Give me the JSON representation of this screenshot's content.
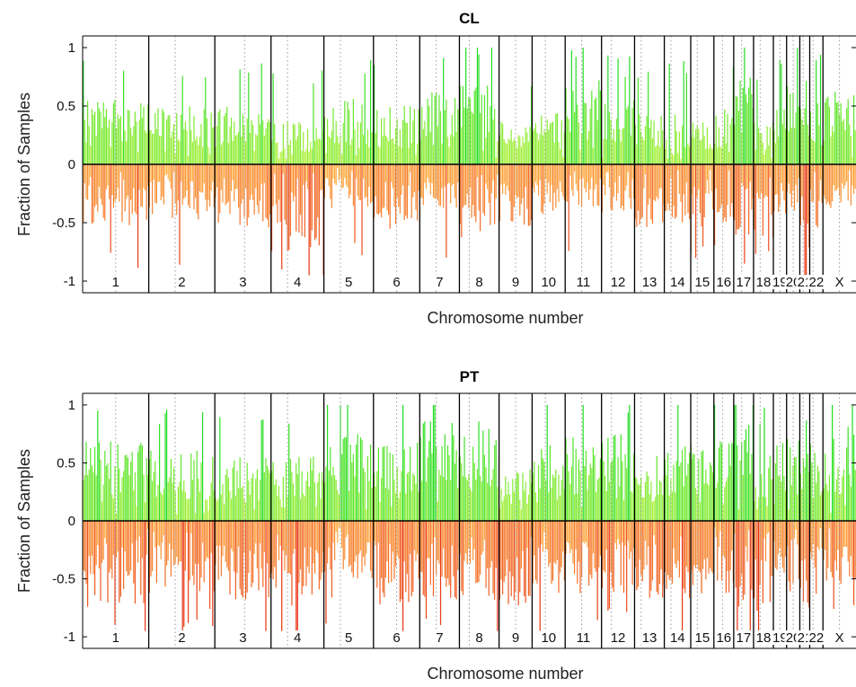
{
  "chart_data": [
    {
      "type": "bar",
      "title": "CL",
      "xlabel": "Chromosome number",
      "ylabel": "Fraction of Samples",
      "ylim": [
        -1.1,
        1.1
      ],
      "yticks": [
        "1",
        "0.5",
        "0",
        "-0.5",
        "-1"
      ],
      "zero_line": true,
      "chromosomes": [
        {
          "label": "1",
          "start": 0.0,
          "centromere": 0.5,
          "end": 1.0,
          "gain_level": 0.45,
          "loss_level": 0.42
        },
        {
          "label": "2",
          "start": 1.0,
          "centromere": 1.4,
          "end": 2.0,
          "gain_level": 0.4,
          "loss_level": 0.38
        },
        {
          "label": "3",
          "start": 2.0,
          "centromere": 2.45,
          "end": 2.85,
          "gain_level": 0.42,
          "loss_level": 0.45
        },
        {
          "label": "4",
          "start": 2.85,
          "centromere": 3.1,
          "end": 3.65,
          "gain_level": 0.3,
          "loss_level": 0.6
        },
        {
          "label": "5",
          "start": 3.65,
          "centromere": 3.9,
          "end": 4.4,
          "gain_level": 0.45,
          "loss_level": 0.3
        },
        {
          "label": "6",
          "start": 4.4,
          "centromere": 4.75,
          "end": 5.1,
          "gain_level": 0.4,
          "loss_level": 0.45
        },
        {
          "label": "7",
          "start": 5.1,
          "centromere": 5.35,
          "end": 5.7,
          "gain_level": 0.5,
          "loss_level": 0.3
        },
        {
          "label": "8",
          "start": 5.7,
          "centromere": 5.85,
          "end": 6.3,
          "gain_level": 0.55,
          "loss_level": 0.5
        },
        {
          "label": "9",
          "start": 6.3,
          "centromere": 6.55,
          "end": 6.8,
          "gain_level": 0.3,
          "loss_level": 0.45
        },
        {
          "label": "10",
          "start": 6.8,
          "centromere": 7.0,
          "end": 7.3,
          "gain_level": 0.35,
          "loss_level": 0.35
        },
        {
          "label": "11",
          "start": 7.3,
          "centromere": 7.55,
          "end": 7.85,
          "gain_level": 0.6,
          "loss_level": 0.3
        },
        {
          "label": "12",
          "start": 7.85,
          "centromere": 8.0,
          "end": 8.35,
          "gain_level": 0.45,
          "loss_level": 0.35
        },
        {
          "label": "13",
          "start": 8.35,
          "centromere": 8.45,
          "end": 8.8,
          "gain_level": 0.35,
          "loss_level": 0.45
        },
        {
          "label": "14",
          "start": 8.8,
          "centromere": 8.9,
          "end": 9.2,
          "gain_level": 0.35,
          "loss_level": 0.4
        },
        {
          "label": "15",
          "start": 9.2,
          "centromere": 9.3,
          "end": 9.55,
          "gain_level": 0.35,
          "loss_level": 0.45
        },
        {
          "label": "16",
          "start": 9.55,
          "centromere": 9.68,
          "end": 9.85,
          "gain_level": 0.4,
          "loss_level": 0.4
        },
        {
          "label": "17",
          "start": 9.85,
          "centromere": 9.97,
          "end": 10.15,
          "gain_level": 0.65,
          "loss_level": 0.55
        },
        {
          "label": "18",
          "start": 10.15,
          "centromere": 10.25,
          "end": 10.45,
          "gain_level": 0.3,
          "loss_level": 0.65
        },
        {
          "label": "19",
          "start": 10.45,
          "centromere": 10.55,
          "end": 10.65,
          "gain_level": 0.45,
          "loss_level": 0.35
        },
        {
          "label": "20",
          "start": 10.65,
          "centromere": 10.75,
          "end": 10.85,
          "gain_level": 0.55,
          "loss_level": 0.35
        },
        {
          "label": "21",
          "start": 10.85,
          "centromere": 10.9,
          "end": 11.0,
          "gain_level": 0.4,
          "loss_level": 0.6
        },
        {
          "label": "22",
          "start": 11.0,
          "centromere": 11.05,
          "end": 11.2,
          "gain_level": 0.45,
          "loss_level": 0.55
        },
        {
          "label": "X",
          "start": 11.2,
          "centromere": 11.45,
          "end": 11.7,
          "gain_level": 0.5,
          "loss_level": 0.3
        }
      ],
      "gain_color_low": "#b8f23a",
      "gain_color_high": "#22dd22",
      "loss_color_low": "#ffb040",
      "loss_color_high": "#e83010"
    },
    {
      "type": "bar",
      "title": "PT",
      "xlabel": "Chromosome number",
      "ylabel": "Fraction of Samples",
      "ylim": [
        -1.1,
        1.1
      ],
      "yticks": [
        "1",
        "0.5",
        "0",
        "-0.5",
        "-1"
      ],
      "zero_line": true,
      "chromosomes": [
        {
          "label": "1",
          "start": 0.0,
          "centromere": 0.5,
          "end": 1.0,
          "gain_level": 0.55,
          "loss_level": 0.6
        },
        {
          "label": "2",
          "start": 1.0,
          "centromere": 1.4,
          "end": 2.0,
          "gain_level": 0.5,
          "loss_level": 0.5
        },
        {
          "label": "3",
          "start": 2.0,
          "centromere": 2.45,
          "end": 2.85,
          "gain_level": 0.45,
          "loss_level": 0.55
        },
        {
          "label": "4",
          "start": 2.85,
          "centromere": 3.1,
          "end": 3.65,
          "gain_level": 0.45,
          "loss_level": 0.6
        },
        {
          "label": "5",
          "start": 3.65,
          "centromere": 3.9,
          "end": 4.4,
          "gain_level": 0.6,
          "loss_level": 0.4
        },
        {
          "label": "6",
          "start": 4.4,
          "centromere": 4.75,
          "end": 5.1,
          "gain_level": 0.55,
          "loss_level": 0.6
        },
        {
          "label": "7",
          "start": 5.1,
          "centromere": 5.35,
          "end": 5.7,
          "gain_level": 0.7,
          "loss_level": 0.55
        },
        {
          "label": "8",
          "start": 5.7,
          "centromere": 5.85,
          "end": 6.3,
          "gain_level": 0.7,
          "loss_level": 0.55
        },
        {
          "label": "9",
          "start": 6.3,
          "centromere": 6.55,
          "end": 6.8,
          "gain_level": 0.4,
          "loss_level": 0.6
        },
        {
          "label": "10",
          "start": 6.8,
          "centromere": 7.0,
          "end": 7.3,
          "gain_level": 0.55,
          "loss_level": 0.5
        },
        {
          "label": "11",
          "start": 7.3,
          "centromere": 7.55,
          "end": 7.85,
          "gain_level": 0.6,
          "loss_level": 0.5
        },
        {
          "label": "12",
          "start": 7.85,
          "centromere": 8.0,
          "end": 8.35,
          "gain_level": 0.6,
          "loss_level": 0.5
        },
        {
          "label": "13",
          "start": 8.35,
          "centromere": 8.45,
          "end": 8.8,
          "gain_level": 0.45,
          "loss_level": 0.55
        },
        {
          "label": "14",
          "start": 8.8,
          "centromere": 8.9,
          "end": 9.2,
          "gain_level": 0.55,
          "loss_level": 0.55
        },
        {
          "label": "15",
          "start": 9.2,
          "centromere": 9.3,
          "end": 9.55,
          "gain_level": 0.5,
          "loss_level": 0.55
        },
        {
          "label": "16",
          "start": 9.55,
          "centromere": 9.68,
          "end": 9.85,
          "gain_level": 0.55,
          "loss_level": 0.5
        },
        {
          "label": "17",
          "start": 9.85,
          "centromere": 9.97,
          "end": 10.15,
          "gain_level": 0.7,
          "loss_level": 0.6
        },
        {
          "label": "18",
          "start": 10.15,
          "centromere": 10.25,
          "end": 10.45,
          "gain_level": 0.45,
          "loss_level": 0.65
        },
        {
          "label": "19",
          "start": 10.45,
          "centromere": 10.55,
          "end": 10.65,
          "gain_level": 0.55,
          "loss_level": 0.5
        },
        {
          "label": "20",
          "start": 10.65,
          "centromere": 10.75,
          "end": 10.85,
          "gain_level": 0.6,
          "loss_level": 0.55
        },
        {
          "label": "21",
          "start": 10.85,
          "centromere": 10.9,
          "end": 11.0,
          "gain_level": 0.5,
          "loss_level": 0.6
        },
        {
          "label": "22",
          "start": 11.0,
          "centromere": 11.05,
          "end": 11.2,
          "gain_level": 0.55,
          "loss_level": 0.55
        },
        {
          "label": "X",
          "start": 11.2,
          "centromere": 11.45,
          "end": 11.7,
          "gain_level": 0.65,
          "loss_level": 0.45
        }
      ],
      "gain_color_low": "#b8f23a",
      "gain_color_high": "#22dd22",
      "loss_color_low": "#ffb040",
      "loss_color_high": "#e83010"
    }
  ]
}
